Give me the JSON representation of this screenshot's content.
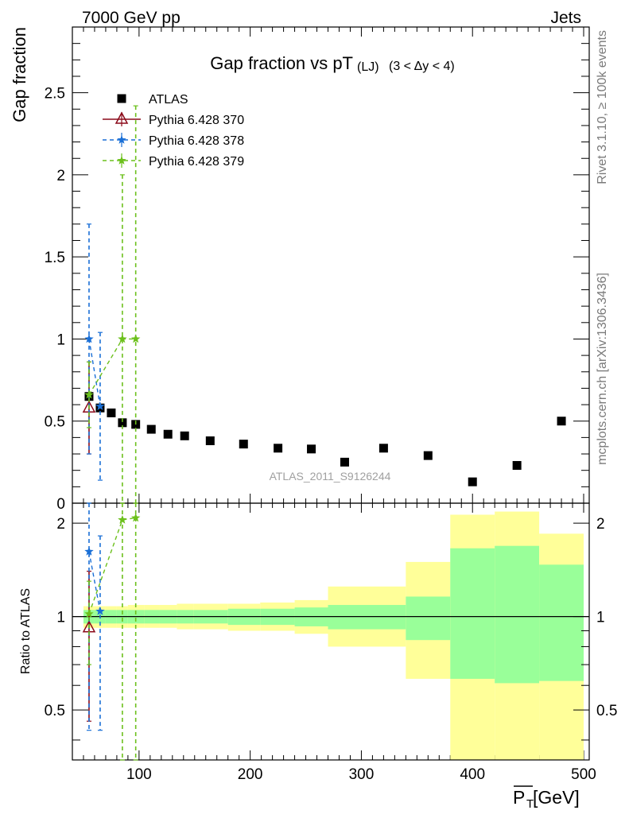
{
  "header": {
    "left": "7000 GeV pp",
    "right": "Jets"
  },
  "side_labels": {
    "rivet": "Rivet 3.1.10, ≥ 100k events",
    "mcplots": "mcplots.cern.ch [arXiv:1306.3436]"
  },
  "watermark": "ATLAS_2011_S9126244",
  "colors": {
    "atlas": "#000000",
    "py370": "#8b0a1a",
    "py378": "#1a6fd6",
    "py379": "#6cc01c",
    "band_inner": "#99ff99",
    "band_outer": "#ffff99"
  },
  "chart_data": [
    {
      "type": "scatter",
      "title": "Gap fraction vs pT",
      "title_sub": "(LJ)",
      "title_range": "(3 < Δy < 4)",
      "ylabel": "Gap fraction",
      "xlim": [
        40,
        505
      ],
      "ylim": [
        0,
        2.9
      ],
      "y_ticks": [
        "0",
        "0.5",
        "1",
        "1.5",
        "2",
        "2.5"
      ],
      "y_tick_values": [
        0,
        0.5,
        1,
        1.5,
        2,
        2.5
      ],
      "legend_position": "top-left",
      "series": [
        {
          "name": "ATLAS",
          "marker": "square",
          "color": "#000000",
          "x": [
            55,
            65,
            75,
            85,
            97,
            111,
            126,
            141,
            164,
            194,
            225,
            255,
            285,
            320,
            360,
            400,
            440,
            480
          ],
          "y": [
            0.65,
            0.58,
            0.55,
            0.49,
            0.48,
            0.45,
            0.42,
            0.41,
            0.38,
            0.36,
            0.335,
            0.33,
            0.25,
            0.335,
            0.29,
            0.13,
            0.23,
            0.5
          ]
        },
        {
          "name": "Pythia 6.428 370",
          "marker": "triangle",
          "color": "#8b0a1a",
          "dash": "solid",
          "x": [
            55
          ],
          "y": [
            0.58
          ],
          "err": [
            0.28
          ]
        },
        {
          "name": "Pythia 6.428 378",
          "marker": "star",
          "color": "#1a6fd6",
          "dash": "dashed",
          "x": [
            55,
            65
          ],
          "y": [
            1.0,
            0.59
          ],
          "err": [
            0.7,
            0.45
          ]
        },
        {
          "name": "Pythia 6.428 379",
          "marker": "star",
          "color": "#6cc01c",
          "dash": "dashed",
          "x": [
            55,
            85,
            97
          ],
          "y": [
            0.66,
            1.0,
            1.0
          ],
          "err": [
            0.2,
            1.0,
            1.42
          ]
        }
      ]
    },
    {
      "type": "scatter",
      "ylabel": "Ratio to ATLAS",
      "xlabel": "P_T [GeV]",
      "xlabel_main": "P",
      "xlabel_sub": "T",
      "xlabel_unit": " [GeV]",
      "xlim": [
        40,
        505
      ],
      "ylim": [
        0.345,
        2.32
      ],
      "x_ticks": [
        "100",
        "200",
        "300",
        "400",
        "500"
      ],
      "x_tick_values": [
        100,
        200,
        300,
        400,
        500
      ],
      "y_ticks": [
        "0.5",
        "1",
        "2"
      ],
      "y_tick_values": [
        0.5,
        1,
        2
      ],
      "bands": {
        "bins": [
          [
            50,
            60
          ],
          [
            60,
            70
          ],
          [
            70,
            80
          ],
          [
            80,
            90
          ],
          [
            90,
            105
          ],
          [
            105,
            118
          ],
          [
            118,
            134
          ],
          [
            134,
            149
          ],
          [
            149,
            180
          ],
          [
            180,
            209
          ],
          [
            209,
            240
          ],
          [
            240,
            270
          ],
          [
            270,
            340
          ],
          [
            340,
            380
          ],
          [
            380,
            420
          ],
          [
            420,
            460
          ],
          [
            460,
            500
          ]
        ],
        "inner": [
          [
            0.95,
            1.05
          ],
          [
            0.95,
            1.05
          ],
          [
            0.95,
            1.05
          ],
          [
            0.95,
            1.05
          ],
          [
            0.95,
            1.05
          ],
          [
            0.95,
            1.05
          ],
          [
            0.95,
            1.05
          ],
          [
            0.95,
            1.05
          ],
          [
            0.95,
            1.05
          ],
          [
            0.94,
            1.06
          ],
          [
            0.94,
            1.06
          ],
          [
            0.93,
            1.07
          ],
          [
            0.91,
            1.09
          ],
          [
            0.84,
            1.16
          ],
          [
            0.63,
            1.66
          ],
          [
            0.61,
            1.69
          ],
          [
            0.62,
            1.47
          ]
        ],
        "outer": [
          [
            0.92,
            1.08
          ],
          [
            0.92,
            1.08
          ],
          [
            0.92,
            1.08
          ],
          [
            0.92,
            1.08
          ],
          [
            0.92,
            1.09
          ],
          [
            0.92,
            1.09
          ],
          [
            0.92,
            1.09
          ],
          [
            0.91,
            1.1
          ],
          [
            0.91,
            1.1
          ],
          [
            0.9,
            1.1
          ],
          [
            0.9,
            1.11
          ],
          [
            0.88,
            1.13
          ],
          [
            0.8,
            1.25
          ],
          [
            0.63,
            1.5
          ],
          [
            0.3,
            2.13
          ],
          [
            0.29,
            2.18
          ],
          [
            0.3,
            1.85
          ]
        ]
      },
      "series": [
        {
          "name": "Pythia 6.428 370",
          "x": [
            55
          ],
          "y": [
            0.92
          ],
          "err_lo": [
            0.46
          ],
          "err_hi": [
            1.4
          ]
        },
        {
          "name": "Pythia 6.428 378",
          "x": [
            55,
            65
          ],
          "y": [
            1.62,
            1.04
          ],
          "err_lo": [
            0.43,
            0.43
          ],
          "err_hi": [
            2.32,
            1.82
          ]
        },
        {
          "name": "Pythia 6.428 379",
          "x": [
            55,
            85,
            97
          ],
          "y": [
            1.02,
            2.05,
            2.08
          ],
          "err_lo": [
            0.7,
            0.34,
            0.34
          ],
          "err_hi": [
            1.3,
            2.32,
            2.32
          ]
        }
      ]
    }
  ]
}
